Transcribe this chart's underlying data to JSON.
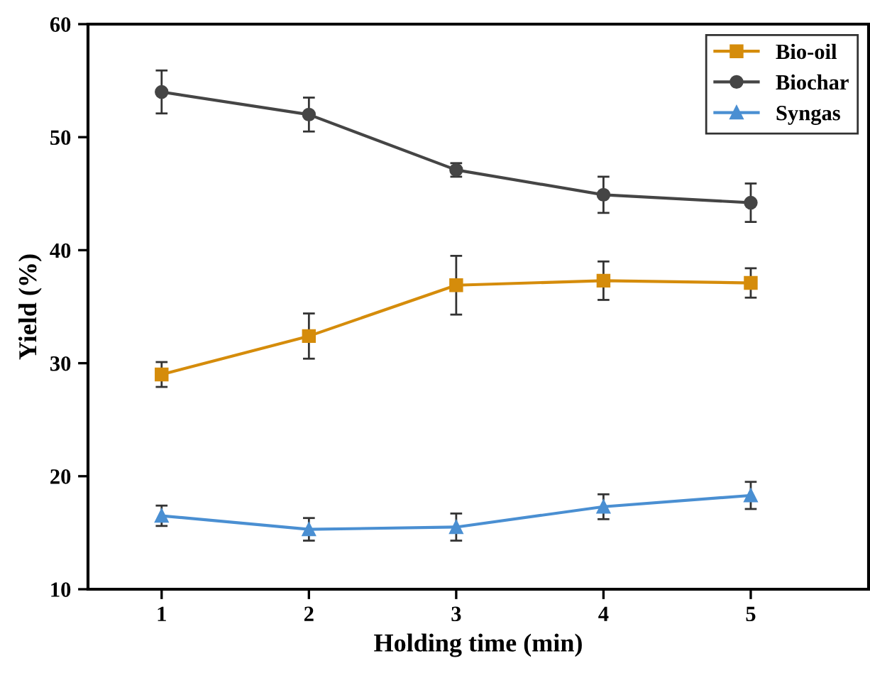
{
  "chart_data": {
    "type": "line",
    "xlabel": "Holding time (min)",
    "ylabel": "Yield (%)",
    "x": [
      1,
      2,
      3,
      4,
      5
    ],
    "series": [
      {
        "name": "Bio-oil",
        "color": "#d58c0b",
        "marker": "square",
        "values": [
          29.0,
          32.4,
          36.9,
          37.3,
          37.1
        ],
        "errors": [
          1.1,
          2.0,
          2.6,
          1.7,
          1.3
        ]
      },
      {
        "name": "Biochar",
        "color": "#454545",
        "marker": "circle",
        "values": [
          54.0,
          52.0,
          47.1,
          44.9,
          44.2
        ],
        "errors": [
          1.9,
          1.5,
          0.6,
          1.6,
          1.7
        ]
      },
      {
        "name": "Syngas",
        "color": "#4a8fd2",
        "marker": "triangle",
        "values": [
          16.5,
          15.3,
          15.5,
          17.3,
          18.3
        ],
        "errors": [
          0.9,
          1.0,
          1.2,
          1.1,
          1.2
        ]
      }
    ],
    "xlim": [
      0.5,
      5.8
    ],
    "xticks": [
      1,
      2,
      3,
      4,
      5
    ],
    "ylim": [
      10,
      60
    ],
    "yticks": [
      10,
      20,
      30,
      40,
      50,
      60
    ],
    "grid": false,
    "legend": "top right",
    "line_style": "solid"
  }
}
